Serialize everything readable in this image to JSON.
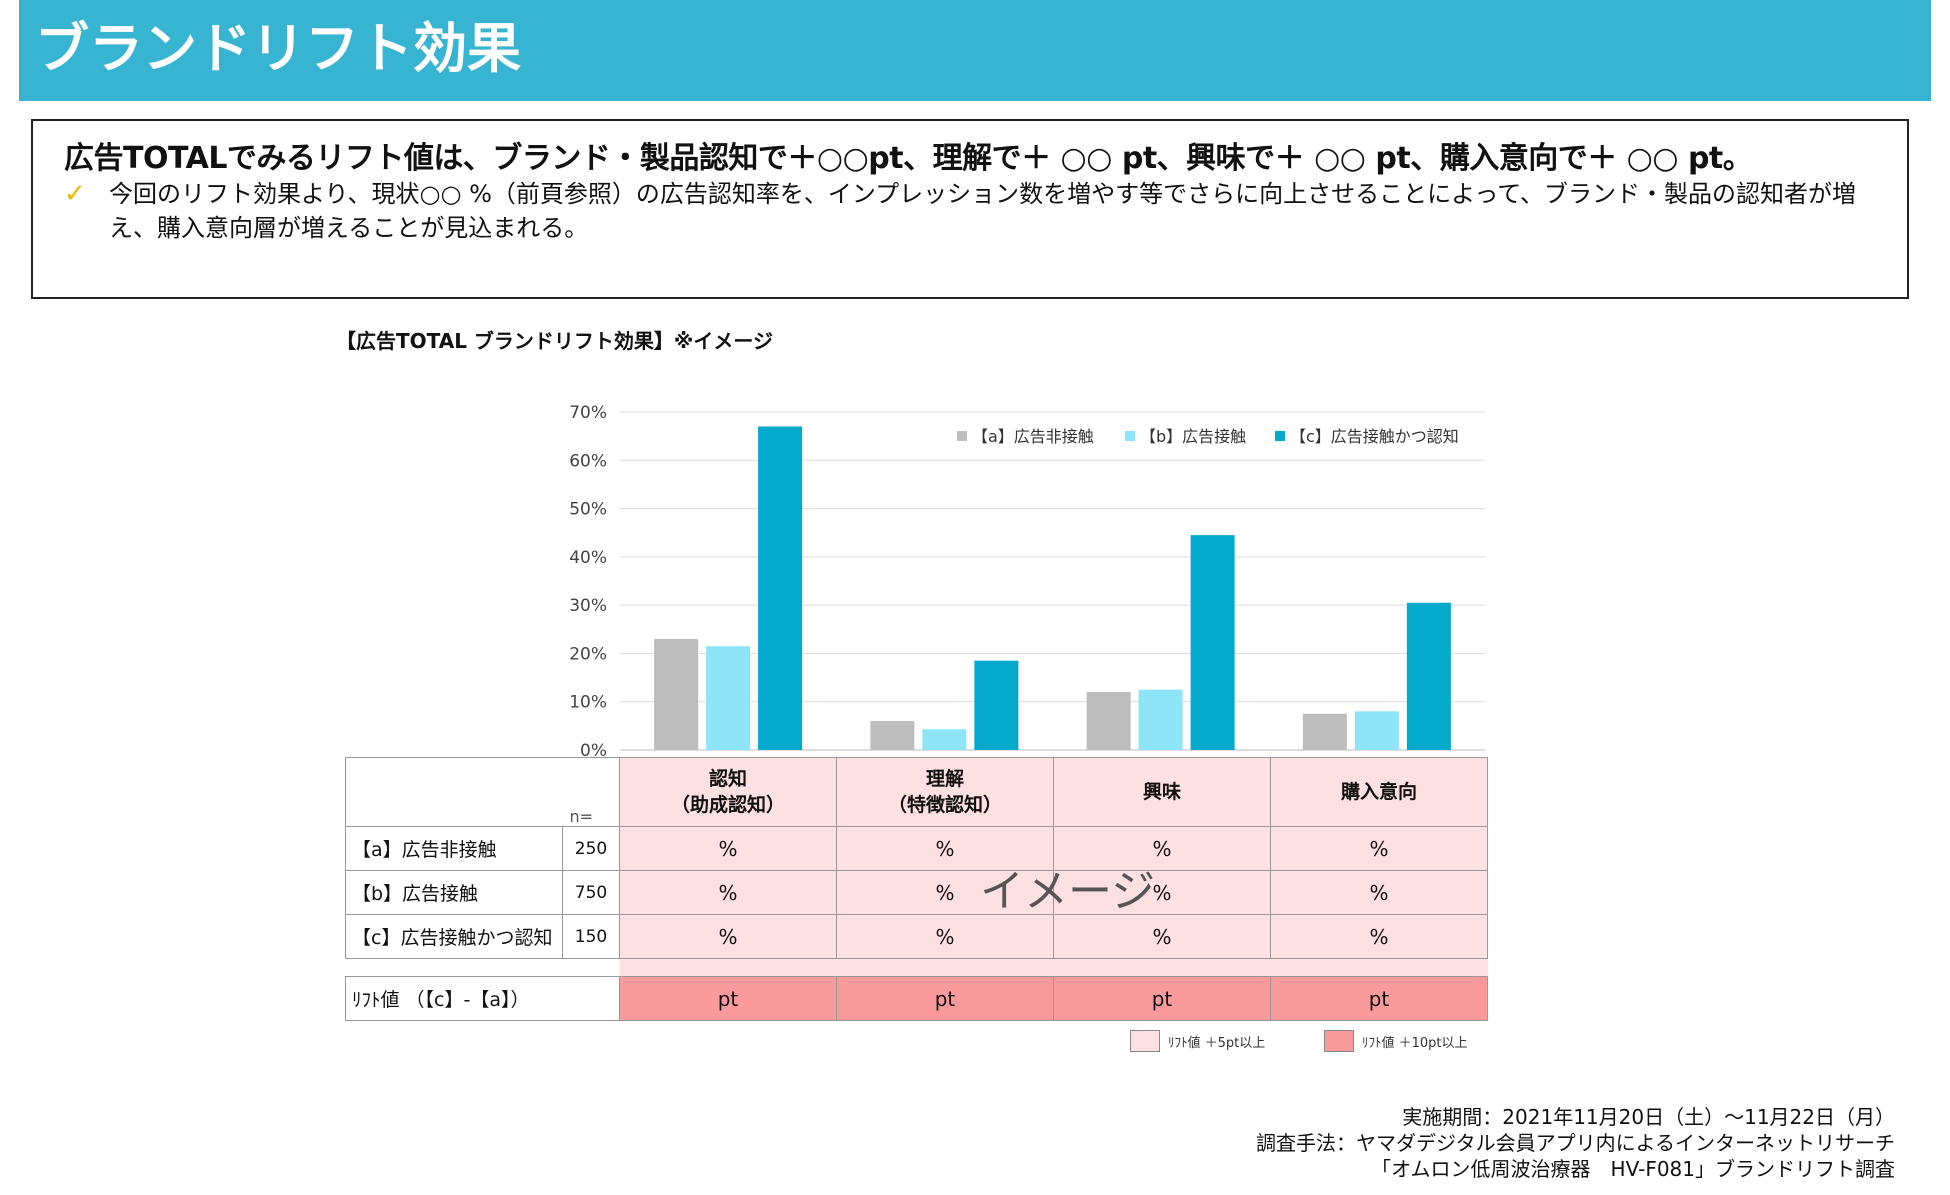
{
  "header": {
    "title": "ブランドリフト効果"
  },
  "summary": {
    "headline": "広告TOTALでみるリフト値は、ブランド・製品認知で＋○○pt、理解で＋ ○○ pt、興味で＋ ○○ pt、購入意向で＋ ○○ pt。",
    "check_icon": "✓",
    "note": "今回のリフト効果より、現状○○ %（前頁参照）の広告認知率を、インプレッション数を増やす等でさらに向上させることによって、ブランド・製品の認知者が増え、購入意向層が増えることが見込まれる。"
  },
  "chart_caption": "【広告TOTAL ブランドリフト効果】※イメージ",
  "chart_data": {
    "type": "bar",
    "title": "【広告TOTAL ブランドリフト効果】※イメージ",
    "categories": [
      "認知（助成認知）",
      "理解（特徴認知）",
      "興味",
      "購入意向"
    ],
    "ylim": [
      0,
      70
    ],
    "ytick_values": [
      0,
      10,
      20,
      30,
      40,
      50,
      60,
      70
    ],
    "ytick_labels": [
      "0%",
      "10%",
      "20%",
      "30%",
      "40%",
      "50%",
      "60%",
      "70%"
    ],
    "ylabel": "",
    "xlabel": "",
    "legend_position": "top-right",
    "series": [
      {
        "name": "【a】広告非接触",
        "color": "#bdbdbd",
        "values": [
          23,
          6,
          12,
          7.5
        ]
      },
      {
        "name": "【b】広告接触",
        "color": "#8ee5f8",
        "values": [
          21.5,
          4.3,
          12.5,
          8
        ]
      },
      {
        "name": "【c】広告接触かつ認知",
        "color": "#04a9cc",
        "values": [
          67,
          18.5,
          44.5,
          30.5
        ]
      }
    ]
  },
  "table": {
    "n_header": "n=",
    "columns": [
      {
        "line1": "認知",
        "line2": "（助成認知）"
      },
      {
        "line1": "理解",
        "line2": "（特徴認知）"
      },
      {
        "line1": "興味",
        "line2": ""
      },
      {
        "line1": "購入意向",
        "line2": ""
      }
    ],
    "rows": [
      {
        "label": "【a】広告非接触",
        "n": "250",
        "values": [
          "%",
          "%",
          "%",
          "%"
        ]
      },
      {
        "label": "【b】広告接触",
        "n": "750",
        "values": [
          "%",
          "%",
          "%",
          "%"
        ]
      },
      {
        "label": "【c】広告接触かつ認知",
        "n": "150",
        "values": [
          "%",
          "%",
          "%",
          "%"
        ]
      }
    ],
    "lift_row": {
      "label": "ﾘﾌﾄ値 （【c】-【a】）",
      "values": [
        "pt",
        "pt",
        "pt",
        "pt"
      ]
    }
  },
  "watermark": "イメージ",
  "lift_legend": [
    {
      "label": "ﾘﾌﾄ値 ＋5pt以上",
      "color": "#fde0e2"
    },
    {
      "label": "ﾘﾌﾄ値 ＋10pt以上",
      "color": "#fa9a9c"
    }
  ],
  "footer": {
    "line1": "実施期間：2021年11月20日（土）～11月22日（月）",
    "line2": "調査手法：ヤマダデジタル会員アプリ内によるインターネットリサーチ",
    "line3": "「オムロン低周波治療器　HV-F081」ブランドリフト調査"
  }
}
